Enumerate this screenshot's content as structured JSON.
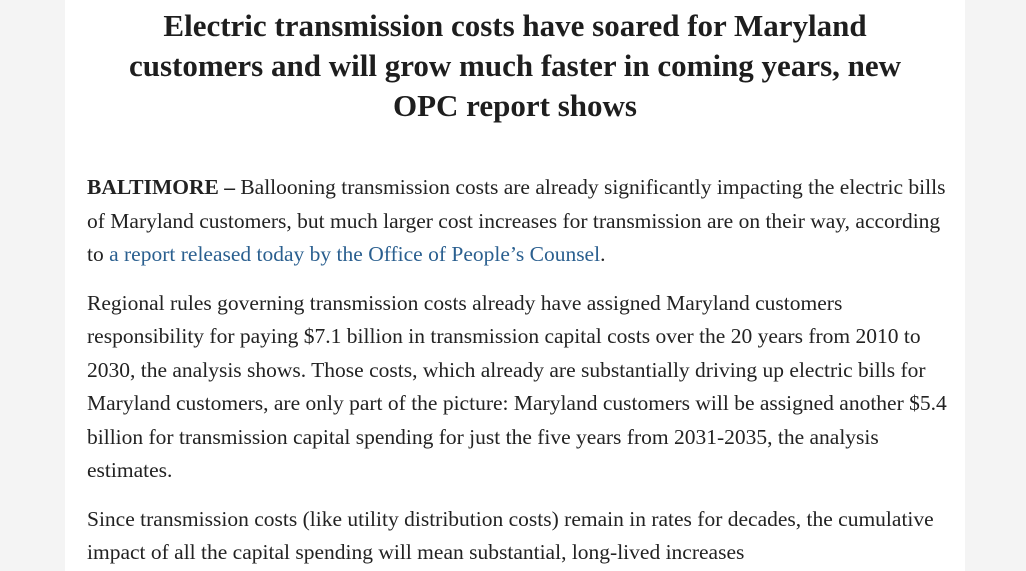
{
  "article": {
    "title_line_1": "Electric transmission costs have soared for Maryland",
    "title_line_2": "customers and will grow much faster in coming years, new",
    "title_line_3": "OPC report shows",
    "p1": {
      "dateline": "BALTIMORE –",
      "text_before_link": " Ballooning transmission costs are already significantly impacting the electric bills of Maryland customers, but much larger cost increases for transmission are on their way, according to ",
      "link_text": "a report released today by the Office of People’s Counsel",
      "text_after_link": "."
    },
    "p2": "Regional rules governing transmission costs already have assigned Maryland customers responsibility for paying $7.1 billion in transmission capital costs over the 20 years from 2010 to 2030, the analysis shows. Those costs, which already are substantially driving up electric bills for Maryland customers, are only part of the picture: Maryland customers will be assigned another $5.4 billion for transmission capital spending for just the five years from 2031-2035, the analysis estimates.",
    "p3": "Since transmission costs (like utility distribution costs) remain in rates for decades, the cumulative impact of all the capital spending will mean substantial, long-lived increases"
  },
  "colors": {
    "link": "#2a5f8f",
    "text": "#222222",
    "background": "#f4f4f4",
    "page": "#ffffff"
  }
}
